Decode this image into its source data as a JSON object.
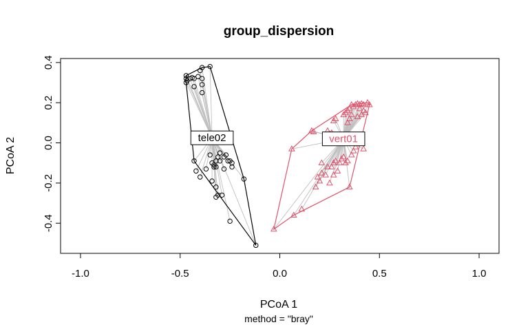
{
  "chart_data": {
    "type": "scatter",
    "title": "group_dispersion",
    "xlabel": "PCoA 1",
    "ylabel": "PCoA 2",
    "sub": "method = \"bray\"",
    "xlim": [
      -1.1,
      1.1
    ],
    "ylim": [
      -0.55,
      0.42
    ],
    "xticks": [
      {
        "value": -1.0,
        "label": "-1.0"
      },
      {
        "value": -0.5,
        "label": "-0.5"
      },
      {
        "value": 0.0,
        "label": "0.0"
      },
      {
        "value": 0.5,
        "label": "0.5"
      },
      {
        "value": 1.0,
        "label": "1.0"
      }
    ],
    "yticks": [
      {
        "value": -0.4,
        "label": "-0.4"
      },
      {
        "value": -0.2,
        "label": "-0.2"
      },
      {
        "value": 0.0,
        "label": "0.0"
      },
      {
        "value": 0.2,
        "label": "0.2"
      },
      {
        "value": 0.4,
        "label": "0.4"
      }
    ],
    "grid": false,
    "segment_color": "#bebebe",
    "series": [
      {
        "name": "tele02",
        "color": "#000000",
        "marker": "circle",
        "centroid": [
          -0.34,
          0.025
        ],
        "hull": [
          [
            -0.47,
            0.335
          ],
          [
            -0.39,
            0.375
          ],
          [
            -0.35,
            0.38
          ],
          [
            -0.18,
            -0.18
          ],
          [
            -0.12,
            -0.51
          ],
          [
            -0.43,
            -0.09
          ],
          [
            -0.47,
            0.3
          ]
        ],
        "points": [
          [
            -0.47,
            0.335
          ],
          [
            -0.47,
            0.32
          ],
          [
            -0.465,
            0.31
          ],
          [
            -0.47,
            0.3
          ],
          [
            -0.45,
            0.32
          ],
          [
            -0.44,
            0.325
          ],
          [
            -0.43,
            0.32
          ],
          [
            -0.43,
            0.28
          ],
          [
            -0.41,
            0.33
          ],
          [
            -0.4,
            0.36
          ],
          [
            -0.39,
            0.375
          ],
          [
            -0.35,
            0.38
          ],
          [
            -0.39,
            0.32
          ],
          [
            -0.39,
            0.29
          ],
          [
            -0.39,
            0.25
          ],
          [
            -0.43,
            -0.09
          ],
          [
            -0.42,
            -0.14
          ],
          [
            -0.4,
            -0.17
          ],
          [
            -0.37,
            -0.13
          ],
          [
            -0.35,
            -0.06
          ],
          [
            -0.34,
            -0.1
          ],
          [
            -0.33,
            -0.11
          ],
          [
            -0.32,
            -0.09
          ],
          [
            -0.32,
            -0.12
          ],
          [
            -0.33,
            -0.12
          ],
          [
            -0.34,
            -0.19
          ],
          [
            -0.32,
            -0.22
          ],
          [
            -0.31,
            -0.07
          ],
          [
            -0.3,
            -0.05
          ],
          [
            -0.3,
            -0.09
          ],
          [
            -0.28,
            -0.13
          ],
          [
            -0.28,
            -0.07
          ],
          [
            -0.25,
            -0.09
          ],
          [
            -0.26,
            -0.09
          ],
          [
            -0.24,
            -0.1
          ],
          [
            -0.24,
            -0.12
          ],
          [
            -0.27,
            -0.06
          ],
          [
            -0.32,
            -0.27
          ],
          [
            -0.31,
            -0.26
          ],
          [
            -0.29,
            -0.26
          ],
          [
            -0.18,
            -0.18
          ],
          [
            -0.25,
            -0.39
          ],
          [
            -0.12,
            -0.51
          ]
        ]
      },
      {
        "name": "vert01",
        "color": "#DF536B",
        "marker": "triangle",
        "centroid": [
          0.32,
          0.02
        ],
        "hull": [
          [
            -0.03,
            -0.43
          ],
          [
            0.07,
            -0.36
          ],
          [
            0.35,
            -0.22
          ],
          [
            0.45,
            0.19
          ],
          [
            0.44,
            0.2
          ],
          [
            0.36,
            0.19
          ],
          [
            0.16,
            0.06
          ],
          [
            0.06,
            -0.03
          ]
        ],
        "points": [
          [
            -0.03,
            -0.43
          ],
          [
            0.07,
            -0.36
          ],
          [
            0.11,
            -0.33
          ],
          [
            0.06,
            -0.03
          ],
          [
            0.16,
            0.06
          ],
          [
            0.17,
            0.055
          ],
          [
            0.21,
            -0.1
          ],
          [
            0.18,
            -0.22
          ],
          [
            0.19,
            -0.17
          ],
          [
            0.2,
            -0.19
          ],
          [
            0.21,
            -0.15
          ],
          [
            0.23,
            -0.16
          ],
          [
            0.24,
            -0.12
          ],
          [
            0.25,
            -0.2
          ],
          [
            0.27,
            -0.16
          ],
          [
            0.26,
            -0.12
          ],
          [
            0.27,
            -0.1
          ],
          [
            0.28,
            -0.09
          ],
          [
            0.29,
            -0.14
          ],
          [
            0.3,
            -0.1
          ],
          [
            0.31,
            -0.08
          ],
          [
            0.32,
            -0.07
          ],
          [
            0.33,
            -0.1
          ],
          [
            0.34,
            -0.09
          ],
          [
            0.35,
            -0.22
          ],
          [
            0.36,
            -0.06
          ],
          [
            0.37,
            -0.04
          ],
          [
            0.38,
            -0.02
          ],
          [
            0.39,
            0.13
          ],
          [
            0.4,
            0.17
          ],
          [
            0.41,
            0.14
          ],
          [
            0.42,
            0.16
          ],
          [
            0.43,
            0.15
          ],
          [
            0.44,
            0.2
          ],
          [
            0.45,
            0.19
          ],
          [
            0.36,
            0.19
          ],
          [
            0.37,
            0.18
          ],
          [
            0.38,
            0.19
          ],
          [
            0.39,
            0.195
          ],
          [
            0.4,
            0.19
          ],
          [
            0.41,
            0.195
          ],
          [
            0.42,
            0.19
          ],
          [
            0.35,
            0.17
          ],
          [
            0.34,
            0.16
          ],
          [
            0.33,
            0.15
          ],
          [
            0.32,
            0.14
          ],
          [
            0.28,
            0.12
          ],
          [
            0.27,
            0.11
          ],
          [
            0.26,
            0.05
          ],
          [
            0.24,
            0.06
          ],
          [
            0.36,
            0.14
          ],
          [
            0.35,
            0.12
          ],
          [
            0.34,
            0.1
          ],
          [
            0.42,
            -0.03
          ]
        ]
      }
    ]
  }
}
